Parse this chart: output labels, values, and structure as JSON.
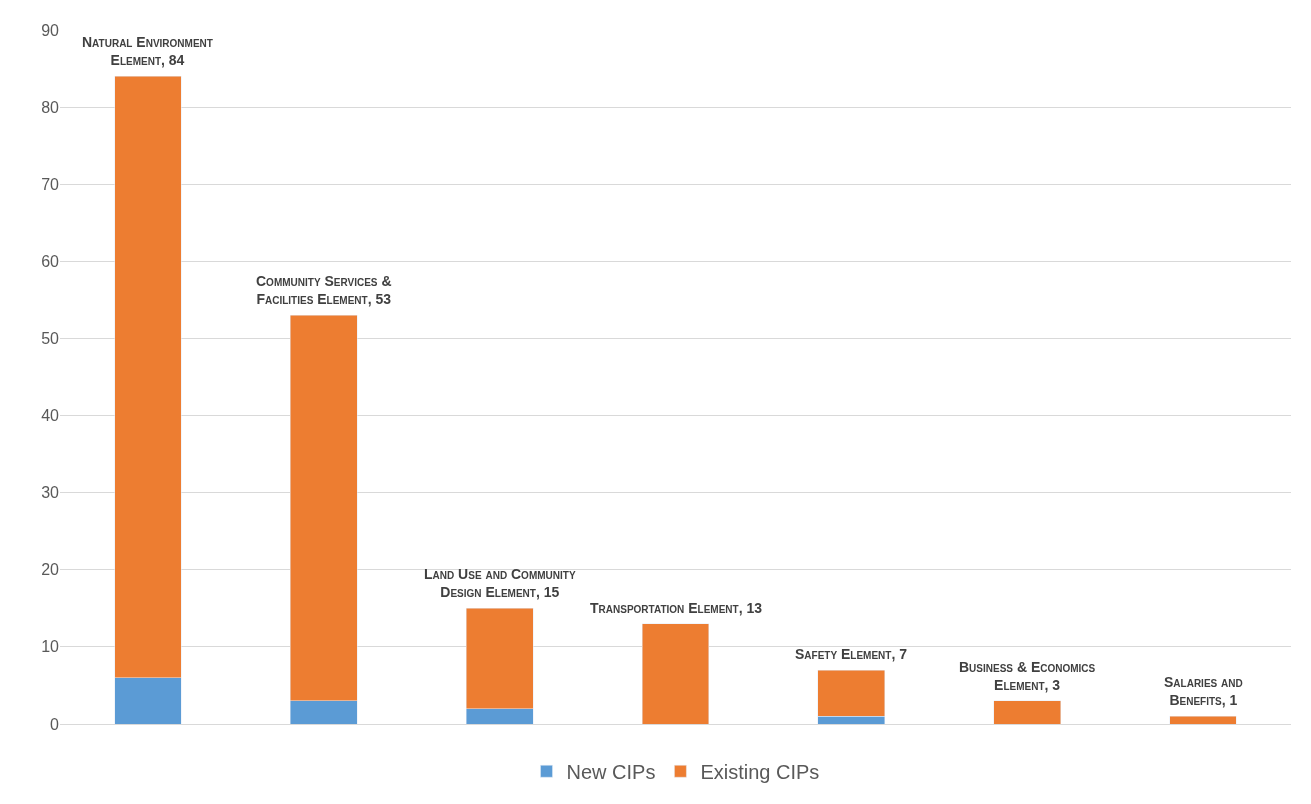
{
  "chart_data": {
    "type": "bar",
    "stacked": true,
    "categories": [
      null,
      null,
      null,
      null,
      null,
      null,
      null
    ],
    "series": [
      {
        "name": "New CIPs",
        "color": "#5b9bd5",
        "values": [
          6,
          3,
          2,
          0,
          1,
          0,
          0
        ]
      },
      {
        "name": "Existing CIPs",
        "color": "#ed7d31",
        "values": [
          78,
          50,
          13,
          13,
          6,
          3,
          1
        ]
      }
    ],
    "annotations": [
      {
        "text": "Natural Environment\nElement, 84",
        "y": 84
      },
      {
        "text": "Community Services &\nFacilities Element, 53",
        "y": 53
      },
      {
        "text": "Land Use and Community\nDesign Element, 15",
        "y": 15
      },
      {
        "text": "Transportation Element, 13",
        "y": 13
      },
      {
        "text": "Safety Element, 7",
        "y": 7
      },
      {
        "text": "Business & Economics\nElement, 3",
        "y": 3
      },
      {
        "text": "Salaries and\nBenefits, 1",
        "y": 1
      }
    ],
    "ylim": [
      0,
      90
    ],
    "yticks": [
      0,
      10,
      20,
      30,
      40,
      50,
      60,
      70,
      80,
      90
    ],
    "grid": "y",
    "legend": "bottom",
    "tick_labels": "y"
  }
}
